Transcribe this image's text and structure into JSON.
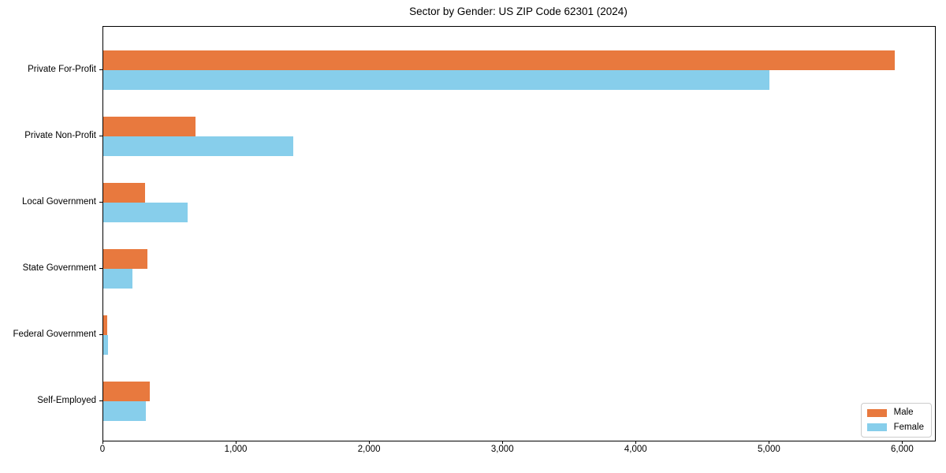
{
  "chart_data": {
    "type": "bar",
    "orientation": "horizontal",
    "title": "Sector by Gender: US ZIP Code 62301 (2024)",
    "categories": [
      "Private For-Profit",
      "Private Non-Profit",
      "Local Government",
      "State Government",
      "Federal Government",
      "Self-Employed"
    ],
    "series": [
      {
        "name": "Male",
        "color": "#e8793e",
        "values": [
          5940,
          690,
          315,
          330,
          30,
          350
        ]
      },
      {
        "name": "Female",
        "color": "#87ceeb",
        "values": [
          5000,
          1425,
          630,
          220,
          35,
          320
        ]
      }
    ],
    "xlabel": "",
    "ylabel": "",
    "xlim": [
      0,
      6240
    ],
    "xticks": [
      0,
      1000,
      2000,
      3000,
      4000,
      5000,
      6000
    ],
    "xtick_labels": [
      "0",
      "1,000",
      "2,000",
      "3,000",
      "4,000",
      "5,000",
      "6,000"
    ],
    "legend_position": "lower right",
    "grid": false,
    "colors": {
      "axis": "#000000",
      "background": "#ffffff",
      "legend_border": "#cccccc"
    }
  }
}
